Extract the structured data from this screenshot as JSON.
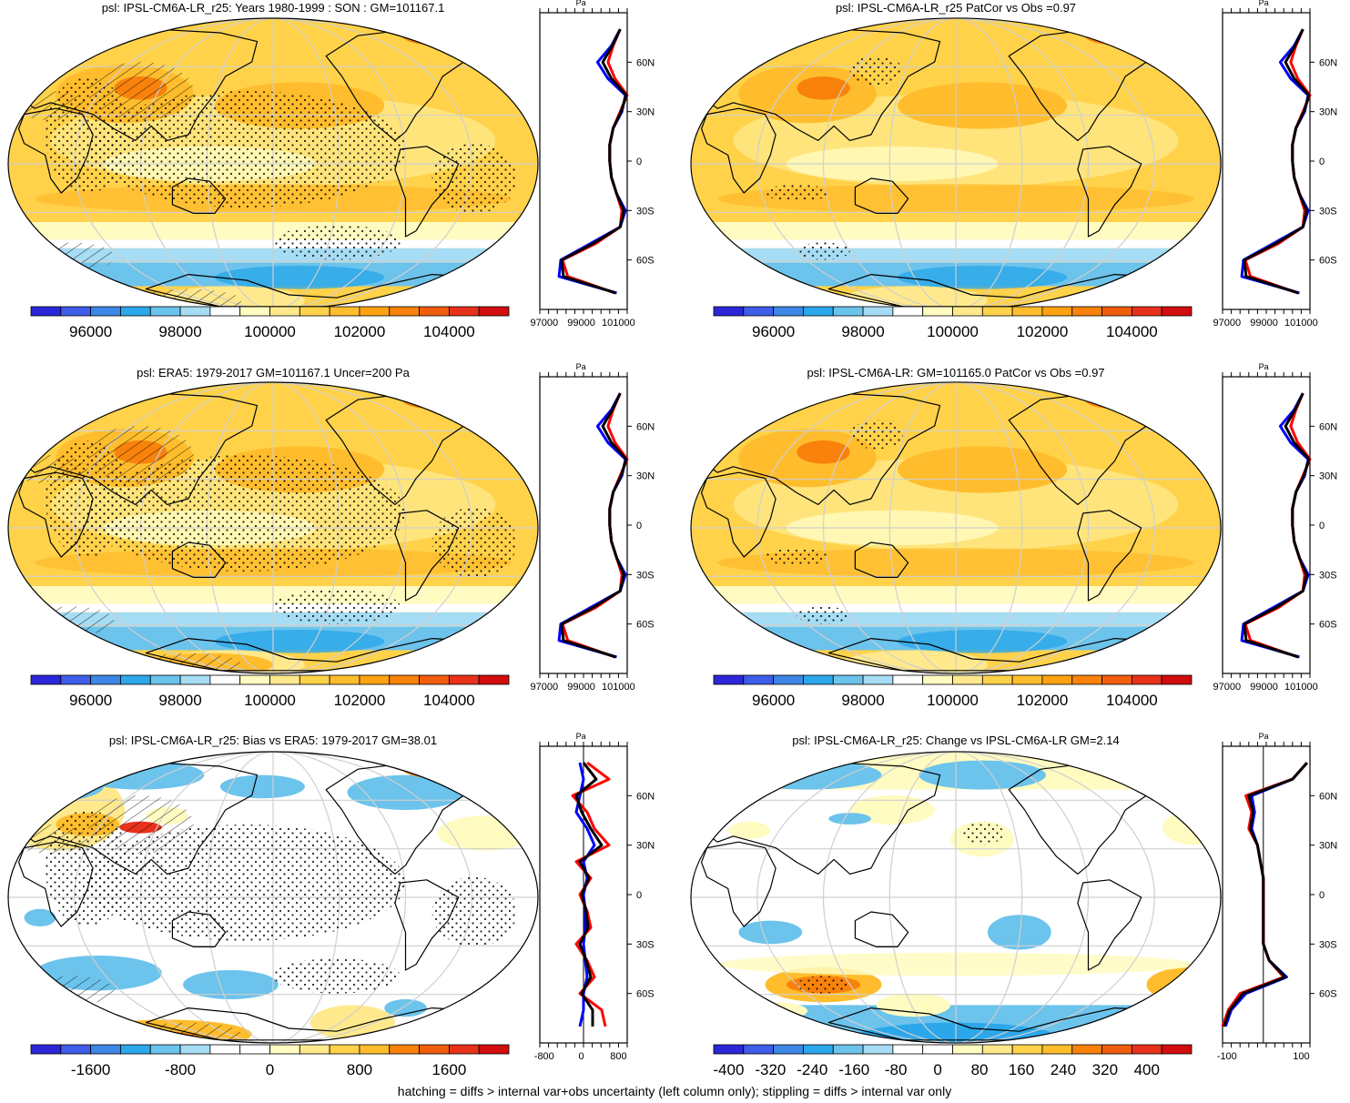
{
  "footer": "hatching = diffs > internal var+obs uncertainty (left column only); stippling = diffs > internal var only",
  "colors": {
    "abs": [
      "#2c26d9",
      "#3e5de8",
      "#3c86e6",
      "#2ba7ea",
      "#6cc3ec",
      "#a6dcf4",
      "#ffffff",
      "#fffbc1",
      "#ffe98c",
      "#ffd24a",
      "#ffbd2d",
      "#ffa312",
      "#f8820b",
      "#f05d0e",
      "#e8311a",
      "#d10d0d"
    ],
    "diff": [
      "#2c26d9",
      "#3e5de8",
      "#3c86e6",
      "#2ba7ea",
      "#6cc3ec",
      "#a6dcf4",
      "#ffffff",
      "#ffffff",
      "#fffbc1",
      "#ffe98c",
      "#ffd24a",
      "#ffbd2d",
      "#f8820b",
      "#f05d0e",
      "#e8311a",
      "#d10d0d"
    ],
    "model_line": "#ff0000",
    "obs_line": "#0000ff",
    "mean_line": "#000000",
    "grid": "#cfcfcf"
  },
  "panels": [
    {
      "title": "psl: IPSL-CM6A-LR_r25: Years 1980-1999 : SON : GM=101167.1",
      "field": "abs",
      "variant": 0,
      "colorbar": {
        "labels": [
          "96000",
          "98000",
          "100000",
          "102000",
          "104000"
        ]
      },
      "zonal": {
        "xlabels": [
          "97000",
          "99000",
          "101000"
        ],
        "ylabels": [
          "60N",
          "30N",
          "0",
          "30S",
          "60S"
        ],
        "unit": "Pa"
      }
    },
    {
      "title": "psl: IPSL-CM6A-LR_r25 PatCor vs Obs =0.97",
      "field": "abs",
      "variant": 1,
      "colorbar": {
        "labels": [
          "96000",
          "98000",
          "100000",
          "102000",
          "104000"
        ]
      },
      "zonal": {
        "xlabels": [
          "97000",
          "99000",
          "101000"
        ],
        "ylabels": [
          "60N",
          "30N",
          "0",
          "30S",
          "60S"
        ],
        "unit": "Pa"
      }
    },
    {
      "title": "psl: ERA5: 1979-2017 GM=101167.1 Uncer=200 Pa",
      "field": "abs",
      "variant": 2,
      "colorbar": {
        "labels": [
          "96000",
          "98000",
          "100000",
          "102000",
          "104000"
        ]
      },
      "zonal": {
        "xlabels": [
          "97000",
          "99000",
          "101000"
        ],
        "ylabels": [
          "60N",
          "30N",
          "0",
          "30S",
          "60S"
        ],
        "unit": "Pa"
      }
    },
    {
      "title": "psl: IPSL-CM6A-LR: GM=101165.0 PatCor vs Obs =0.97",
      "field": "abs",
      "variant": 3,
      "colorbar": {
        "labels": [
          "96000",
          "98000",
          "100000",
          "102000",
          "104000"
        ]
      },
      "zonal": {
        "xlabels": [
          "97000",
          "99000",
          "101000"
        ],
        "ylabels": [
          "60N",
          "30N",
          "0",
          "30S",
          "60S"
        ],
        "unit": "Pa"
      }
    },
    {
      "title": "psl: IPSL-CM6A-LR_r25: Bias vs ERA5: 1979-2017  GM=38.01",
      "field": "bias",
      "variant": 4,
      "colorbar": {
        "labels": [
          "-1600",
          "-800",
          "0",
          "800",
          "1600"
        ]
      },
      "zonal": {
        "xlabels": [
          "-800",
          "0",
          "800"
        ],
        "ylabels": [
          "60N",
          "30N",
          "0",
          "30S",
          "60S"
        ],
        "unit": "Pa"
      }
    },
    {
      "title": "psl: IPSL-CM6A-LR_r25: Change vs IPSL-CM6A-LR GM=2.14",
      "field": "change",
      "variant": 5,
      "colorbar": {
        "labels": [
          "-400",
          "-320",
          "-240",
          "-160",
          "-80",
          "0",
          "80",
          "160",
          "240",
          "320",
          "400"
        ]
      },
      "zonal": {
        "xlabels": [
          "-100",
          "100"
        ],
        "ylabels": [
          "60N",
          "30N",
          "0",
          "30S",
          "60S"
        ],
        "unit": "Pa"
      }
    }
  ],
  "chart_data": [
    {
      "type": "heatmap",
      "title": "psl: IPSL-CM6A-LR_r25: Years 1980-1999 : SON : GM=101167.1",
      "zlim": [
        95000,
        105000
      ],
      "units": "Pa",
      "zonal_mean": {
        "lat": [
          80,
          70,
          60,
          50,
          40,
          30,
          20,
          10,
          0,
          -10,
          -20,
          -30,
          -40,
          -50,
          -60,
          -70,
          -80
        ],
        "model": [
          101600,
          101200,
          100900,
          101300,
          102000,
          101600,
          101200,
          101000,
          101000,
          101100,
          101400,
          101700,
          101600,
          100200,
          98300,
          98600,
          101300
        ],
        "obs": [
          101600,
          101100,
          100300,
          100900,
          101900,
          101700,
          101200,
          101000,
          101000,
          101100,
          101400,
          101900,
          101600,
          99900,
          98200,
          98100,
          101400
        ],
        "xlim": [
          97000,
          102000
        ]
      }
    },
    {
      "type": "heatmap",
      "title": "psl: IPSL-CM6A-LR_r25 PatCor vs Obs =0.97",
      "zlim": [
        95000,
        105000
      ],
      "units": "Pa",
      "zonal_mean": {
        "lat": [
          80,
          70,
          60,
          50,
          40,
          30,
          20,
          10,
          0,
          -10,
          -20,
          -30,
          -40,
          -50,
          -60,
          -70,
          -80
        ],
        "model": [
          101600,
          101200,
          100900,
          101300,
          102000,
          101600,
          101200,
          101000,
          101000,
          101100,
          101400,
          101700,
          101600,
          100200,
          98300,
          98600,
          101300
        ],
        "obs": [
          101600,
          101100,
          100300,
          100900,
          101900,
          101700,
          101200,
          101000,
          101000,
          101100,
          101400,
          101900,
          101600,
          99900,
          98200,
          98100,
          101400
        ],
        "xlim": [
          97000,
          102000
        ]
      }
    },
    {
      "type": "heatmap",
      "title": "psl: ERA5: 1979-2017 GM=101167.1 Uncer=200 Pa",
      "zlim": [
        95000,
        105000
      ],
      "units": "Pa",
      "zonal_mean": {
        "lat": [
          80,
          70,
          60,
          50,
          40,
          30,
          20,
          10,
          0,
          -10,
          -20,
          -30,
          -40,
          -50,
          -60,
          -70,
          -80
        ],
        "model": [
          101600,
          101200,
          100900,
          101300,
          102000,
          101600,
          101200,
          101000,
          101000,
          101100,
          101400,
          101700,
          101600,
          100200,
          98300,
          98600,
          101300
        ],
        "obs": [
          101600,
          101100,
          100300,
          100900,
          101900,
          101700,
          101200,
          101000,
          101000,
          101100,
          101400,
          101900,
          101600,
          99900,
          98200,
          98100,
          101400
        ],
        "xlim": [
          97000,
          102000
        ]
      }
    },
    {
      "type": "heatmap",
      "title": "psl: IPSL-CM6A-LR: GM=101165.0 PatCor vs Obs =0.97",
      "zlim": [
        95000,
        105000
      ],
      "units": "Pa",
      "zonal_mean": {
        "lat": [
          80,
          70,
          60,
          50,
          40,
          30,
          20,
          10,
          0,
          -10,
          -20,
          -30,
          -40,
          -50,
          -60,
          -70,
          -80
        ],
        "model": [
          101600,
          101200,
          100900,
          101300,
          102000,
          101600,
          101200,
          101000,
          101000,
          101100,
          101400,
          101700,
          101600,
          100200,
          98300,
          98600,
          101300
        ],
        "obs": [
          101600,
          101100,
          100300,
          100900,
          101900,
          101700,
          101200,
          101000,
          101000,
          101100,
          101400,
          101900,
          101600,
          99900,
          98200,
          98100,
          101400
        ],
        "xlim": [
          97000,
          102000
        ]
      }
    },
    {
      "type": "heatmap",
      "title": "psl: IPSL-CM6A-LR_r25: Bias vs ERA5: 1979-2017  GM=38.01",
      "zlim": [
        -2000,
        2000
      ],
      "units": "Pa",
      "zonal_mean": {
        "lat": [
          80,
          70,
          60,
          50,
          40,
          30,
          20,
          10,
          0,
          -10,
          -20,
          -30,
          -40,
          -50,
          -60,
          -70,
          -80
        ],
        "model": [
          100,
          700,
          -300,
          100,
          300,
          700,
          -200,
          200,
          -100,
          100,
          200,
          -200,
          100,
          300,
          -100,
          500,
          600
        ],
        "obs": [
          -100,
          0,
          -100,
          -200,
          100,
          300,
          0,
          100,
          0,
          50,
          50,
          0,
          50,
          100,
          0,
          0,
          -100
        ],
        "xlim": [
          -1200,
          1200
        ]
      }
    },
    {
      "type": "heatmap",
      "title": "psl: IPSL-CM6A-LR_r25: Change vs IPSL-CM6A-LR GM=2.14",
      "zlim": [
        -440,
        440
      ],
      "units": "Pa",
      "zonal_mean": {
        "lat": [
          80,
          70,
          60,
          50,
          40,
          30,
          20,
          10,
          0,
          -10,
          -20,
          -30,
          -40,
          -50,
          -60,
          -70,
          -80
        ],
        "model": [
          150,
          100,
          -60,
          -40,
          -50,
          -20,
          -10,
          0,
          0,
          0,
          0,
          0,
          20,
          70,
          -80,
          -120,
          -140
        ],
        "obs": [
          150,
          100,
          -40,
          -30,
          -40,
          -20,
          -10,
          0,
          0,
          0,
          0,
          0,
          20,
          80,
          -60,
          -110,
          -130
        ],
        "xlim": [
          -140,
          160
        ]
      }
    }
  ]
}
